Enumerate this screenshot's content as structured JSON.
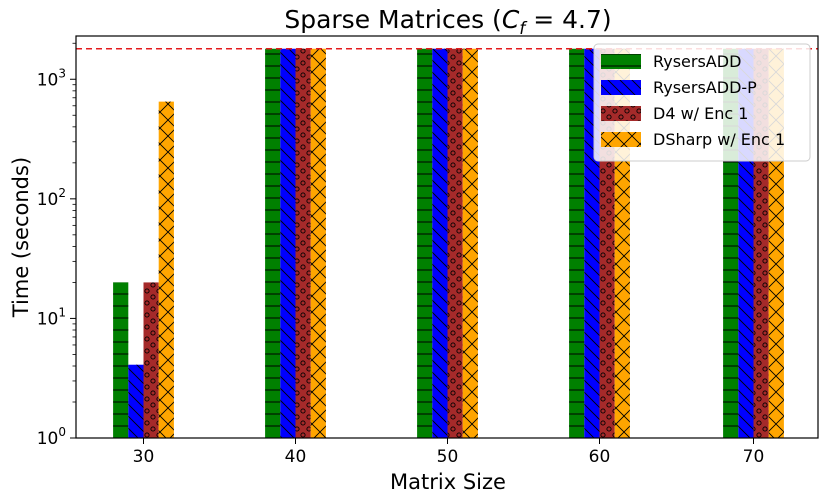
{
  "chart_data": {
    "type": "bar",
    "title": "Sparse Matrices (",
    "title_math": "C",
    "title_sub": "f",
    "title_rest": " = 4.7)",
    "xlabel": "Matrix Size",
    "ylabel": "Time (seconds)",
    "yscale": "log",
    "ylim": [
      1,
      2300
    ],
    "categories": [
      "30",
      "40",
      "50",
      "60",
      "70"
    ],
    "y_ticks": [
      {
        "base": "10",
        "exp": "0",
        "value": 1
      },
      {
        "base": "10",
        "exp": "1",
        "value": 10
      },
      {
        "base": "10",
        "exp": "2",
        "value": 100
      },
      {
        "base": "10",
        "exp": "3",
        "value": 1000
      }
    ],
    "timeout_line": {
      "value": 1800,
      "color": "#e41a1c",
      "style": "dashed"
    },
    "series": [
      {
        "name": "RysersADD",
        "color": "#008000",
        "hatch": "horizontal",
        "values": [
          20,
          1800,
          1800,
          1800,
          1800
        ]
      },
      {
        "name": "RysersADD-P",
        "color": "#0000ff",
        "hatch": "diagonal",
        "values": [
          4.1,
          1800,
          1800,
          1800,
          1800
        ]
      },
      {
        "name": "D4 w/ Enc 1",
        "color": "#a52a2a",
        "hatch": "circles",
        "values": [
          20,
          1800,
          1800,
          1800,
          1800
        ]
      },
      {
        "name": "DSharp w/ Enc 1",
        "color": "#ffa500",
        "hatch": "cross",
        "values": [
          650,
          1800,
          1800,
          1800,
          1800
        ]
      }
    ],
    "legend_position": "top-right"
  }
}
